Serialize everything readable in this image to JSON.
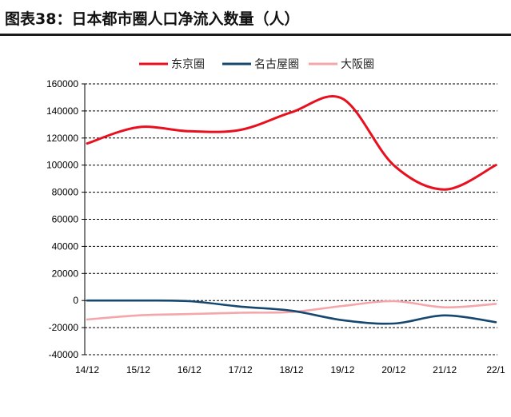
{
  "header": {
    "title": "图表38：日本都市圈人口净流入数量（人）"
  },
  "colors": {
    "tokyo": "#e8101e",
    "nagoya": "#16476e",
    "osaka": "#f4a6ab",
    "grid": "#000000"
  },
  "chart_data": {
    "type": "line",
    "title": "日本都市圈人口净流入数量（人）",
    "xlabel": "",
    "ylabel": "",
    "categories": [
      "14/12",
      "15/12",
      "16/12",
      "17/12",
      "18/12",
      "19/12",
      "20/12",
      "21/12",
      "22/1"
    ],
    "ylim": [
      -40000,
      160000
    ],
    "yticks": [
      160000,
      140000,
      120000,
      100000,
      80000,
      60000,
      40000,
      20000,
      0,
      -20000,
      -40000
    ],
    "ytick_labels": [
      "160000",
      "140000",
      "120000",
      "100000",
      "80000",
      "60000",
      "40000",
      "20000",
      "0",
      "-20000",
      "-40000"
    ],
    "grid": "horizontal-dashed",
    "legend": "top-center",
    "series": [
      {
        "name": "东京圈",
        "color": "#e8101e",
        "values": [
          116000,
          128000,
          125000,
          126000,
          139000,
          149000,
          100000,
          82000,
          100000
        ]
      },
      {
        "name": "名古屋圈",
        "color": "#16476e",
        "values": [
          0,
          0,
          -500,
          -4500,
          -7500,
          -14500,
          -17000,
          -11000,
          -16000
        ]
      },
      {
        "name": "大阪圈",
        "color": "#f4a6ab",
        "values": [
          -14000,
          -11000,
          -10000,
          -9000,
          -8500,
          -4000,
          -500,
          -5000,
          -2500
        ]
      }
    ]
  }
}
